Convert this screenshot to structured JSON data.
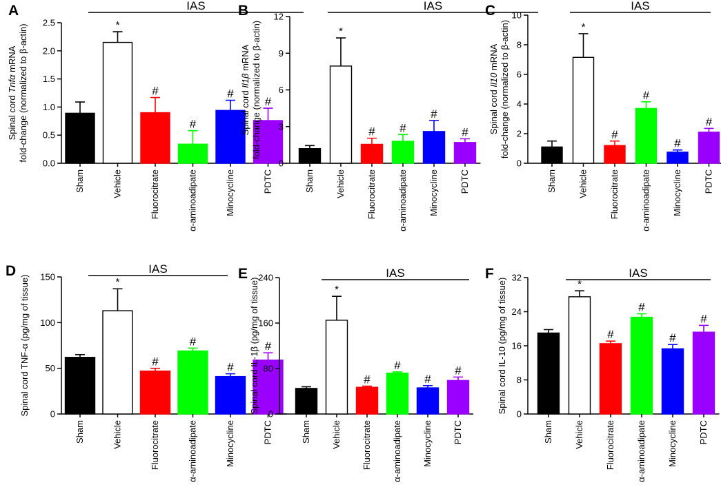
{
  "figure": {
    "colors": {
      "sham": "#000000",
      "vehicle": "#ffffff",
      "fluorocitrate": "#ff0000",
      "aminoadipate": "#00ff00",
      "minocycline": "#0000ff",
      "pdtc": "#9900ff"
    }
  },
  "chart_data": [
    {
      "type": "bar",
      "panel": "A",
      "group_label": "IAS",
      "ylabel_parts": [
        "Spinal cord ",
        "Tnfα",
        " mRNA"
      ],
      "ylabel2": "fold-change (normalized to β-actin)",
      "categories": [
        "Sham",
        "Vehicle",
        "Fluorocitrate",
        "α-aminoadipate",
        "Minocycline",
        "PDTC"
      ],
      "values": [
        0.89,
        2.15,
        0.9,
        0.34,
        0.94,
        0.76
      ],
      "errors": [
        0.2,
        0.19,
        0.27,
        0.24,
        0.18,
        0.22
      ],
      "markers": [
        "",
        "*",
        "#",
        "#",
        "#",
        "#"
      ],
      "ylim": [
        0,
        2.5
      ],
      "yticks": [
        0,
        0.5,
        1.0,
        1.5,
        2.0,
        2.5
      ],
      "ytick_labels": [
        "0.0",
        "0.5",
        "1.0",
        "1.5",
        "2.0",
        "2.5"
      ]
    },
    {
      "type": "bar",
      "panel": "B",
      "group_label": "IAS",
      "ylabel_parts": [
        "Spinal cord ",
        "Il1β",
        " mRNA"
      ],
      "ylabel2": "fold-change (normalized to β-actin)",
      "categories": [
        "Sham",
        "Vehicle",
        "Fluorocitrate",
        "α-aminoadipate",
        "Minocycline",
        "PDTC"
      ],
      "values": [
        1.2,
        7.95,
        1.55,
        1.8,
        2.6,
        1.7
      ],
      "errors": [
        0.25,
        2.3,
        0.5,
        0.55,
        0.9,
        0.3
      ],
      "markers": [
        "",
        "*",
        "#",
        "#",
        "#",
        "#"
      ],
      "ylim": [
        0,
        12
      ],
      "yticks": [
        0,
        3,
        6,
        9,
        12
      ],
      "ytick_labels": [
        "0",
        "3",
        "6",
        "9",
        "12"
      ]
    },
    {
      "type": "bar",
      "panel": "C",
      "group_label": "IAS",
      "ylabel_parts": [
        "Spinal cord ",
        "Il10",
        " mRNA"
      ],
      "ylabel2": "fold-change (normalized to β-actin)",
      "categories": [
        "Sham",
        "Vehicle",
        "Fluorocitrate",
        "α-aminoadipate",
        "Minocycline",
        "PDTC"
      ],
      "values": [
        1.1,
        7.15,
        1.2,
        3.7,
        0.75,
        2.1
      ],
      "errors": [
        0.4,
        1.6,
        0.3,
        0.45,
        0.15,
        0.25
      ],
      "markers": [
        "",
        "*",
        "#",
        "#",
        "#",
        "#"
      ],
      "ylim": [
        0,
        10
      ],
      "yticks": [
        0,
        2,
        4,
        6,
        8,
        10
      ],
      "ytick_labels": [
        "0",
        "2",
        "4",
        "6",
        "8",
        "10"
      ]
    },
    {
      "type": "bar",
      "panel": "D",
      "group_label": "IAS",
      "ylabel_parts": [
        "Spinal cord TNF-α (pg/mg of tissue)"
      ],
      "ylabel2": "",
      "categories": [
        "Sham",
        "Vehicle",
        "Fluorocitrate",
        "α-aminoadipate",
        "Minocycline",
        "PDTC"
      ],
      "values": [
        62,
        113,
        47,
        69,
        41,
        59
      ],
      "errors": [
        3,
        24,
        3,
        3,
        3,
        8
      ],
      "markers": [
        "",
        "*",
        "#",
        "#",
        "#",
        "#"
      ],
      "ylim": [
        0,
        150
      ],
      "yticks": [
        0,
        50,
        100,
        150
      ],
      "ytick_labels": [
        "0",
        "50",
        "100",
        "150"
      ]
    },
    {
      "type": "bar",
      "panel": "E",
      "group_label": "IAS",
      "ylabel_parts": [
        "Spinal cord IL-1β (pg/mg of tissue)"
      ],
      "ylabel2": "",
      "categories": [
        "Sham",
        "Vehicle",
        "Fluorocitrate",
        "α-aminoadipate",
        "Minocycline",
        "PDTC"
      ],
      "values": [
        45,
        165,
        47,
        72,
        46,
        59
      ],
      "errors": [
        3,
        42,
        2,
        2,
        4,
        6
      ],
      "markers": [
        "",
        "*",
        "#",
        "#",
        "#",
        "#"
      ],
      "ylim": [
        0,
        240
      ],
      "yticks": [
        0,
        80,
        160,
        240
      ],
      "ytick_labels": [
        "0",
        "80",
        "160",
        "240"
      ]
    },
    {
      "type": "bar",
      "panel": "F",
      "group_label": "IAS",
      "ylabel_parts": [
        "Spinal cord IL-10 (pg/mg of tissue)"
      ],
      "ylabel2": "",
      "categories": [
        "Sham",
        "Vehicle",
        "Fluorocitrate",
        "α-aminoadipate",
        "Minocycline",
        "PDTC"
      ],
      "values": [
        19,
        27.5,
        16.5,
        22.7,
        15.3,
        19.2
      ],
      "errors": [
        0.8,
        1.4,
        0.6,
        0.8,
        1.0,
        1.6
      ],
      "markers": [
        "",
        "*",
        "#",
        "#",
        "#",
        "#"
      ],
      "ylim": [
        0,
        32
      ],
      "yticks": [
        0,
        8,
        16,
        24,
        32
      ],
      "ytick_labels": [
        "0",
        "8",
        "16",
        "24",
        "32"
      ]
    }
  ]
}
